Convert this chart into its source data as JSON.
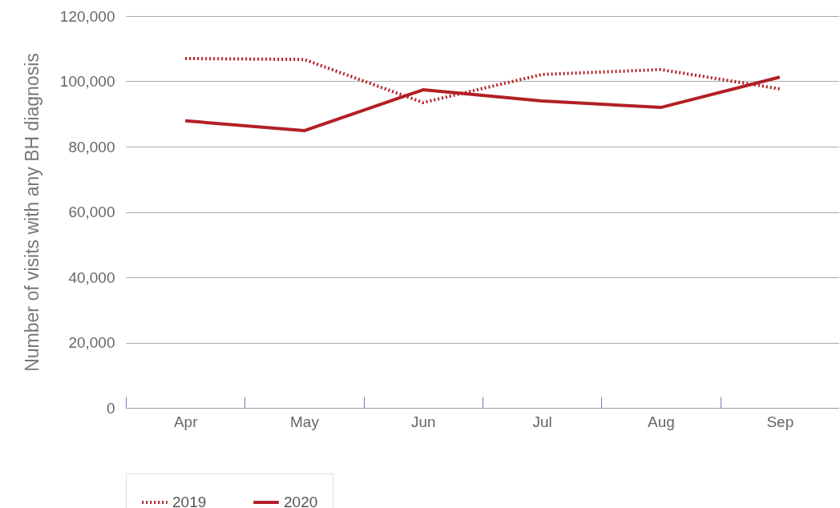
{
  "chart_data": {
    "type": "line",
    "ylabel": "Number of visits with any BH diagnosis",
    "categories": [
      "Apr",
      "May",
      "Jun",
      "Jul",
      "Aug",
      "Sep"
    ],
    "series": [
      {
        "name": "2019",
        "color": "#b22024",
        "line_style": "dotted",
        "values": [
          107000,
          106700,
          93500,
          102100,
          103600,
          97700
        ]
      },
      {
        "name": "2020",
        "color": "#b22024",
        "line_style": "solid",
        "values": [
          87900,
          84900,
          97400,
          94000,
          92000,
          101300
        ]
      }
    ],
    "ylim": [
      0,
      120000
    ],
    "yticks": [
      0,
      {
        "value": 20000,
        "label": "20,000"
      },
      {
        "value": 40000,
        "label": "40,000"
      },
      {
        "value": 60000,
        "label": "60,000"
      },
      {
        "value": 80000,
        "label": "80,000"
      },
      {
        "value": 100000,
        "label": "100,000"
      },
      {
        "value": 120000,
        "label": "120,000"
      }
    ],
    "grid": "y",
    "legend": "bottom",
    "marker": "none"
  }
}
